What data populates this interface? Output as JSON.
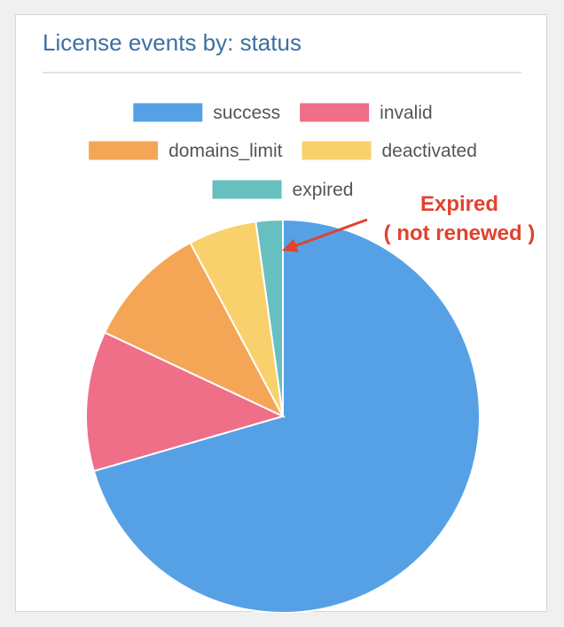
{
  "header": {
    "title": "License events by: status"
  },
  "annotation": {
    "line1": "Expired",
    "line2": "( not renewed )",
    "color": "#e0432f"
  },
  "chart_data": {
    "type": "pie",
    "title": "License events by: status",
    "legend_position": "top",
    "labels": [
      "success",
      "invalid",
      "domains_limit",
      "deactivated",
      "expired"
    ],
    "values": [
      70.5,
      11.5,
      10.2,
      5.6,
      2.2
    ],
    "colors": [
      "#56a1e6",
      "#ee6f87",
      "#f4a656",
      "#f8d16c",
      "#66c0c0"
    ],
    "start_angle_deg": 0,
    "direction": "clockwise"
  }
}
